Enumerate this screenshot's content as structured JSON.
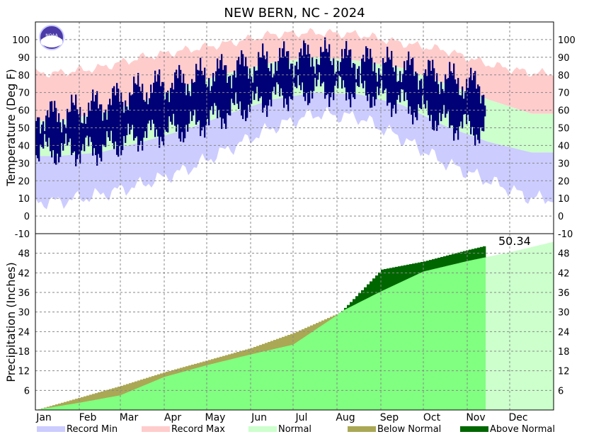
{
  "chart_data": {
    "type": "area",
    "title": "NEW BERN, NC - 2024",
    "months": [
      "Jan",
      "Feb",
      "Mar",
      "Apr",
      "May",
      "Jun",
      "Jul",
      "Aug",
      "Sep",
      "Oct",
      "Nov",
      "Dec"
    ],
    "temperature": {
      "ylabel": "Temperature (Deg F)",
      "ylim": [
        -10,
        110
      ],
      "ticks": [
        -10,
        0,
        10,
        20,
        30,
        40,
        50,
        60,
        70,
        80,
        90,
        100
      ],
      "normal_max_by_month": [
        54,
        58,
        65,
        74,
        81,
        87,
        90,
        88,
        84,
        75,
        66,
        58
      ],
      "normal_min_by_month": [
        34,
        36,
        42,
        49,
        58,
        66,
        70,
        69,
        63,
        51,
        42,
        36
      ],
      "record_max_by_month": [
        81,
        84,
        90,
        94,
        98,
        103,
        104,
        103,
        98,
        94,
        86,
        81
      ],
      "record_min_by_month": [
        8,
        12,
        18,
        26,
        38,
        50,
        58,
        56,
        44,
        30,
        20,
        10
      ],
      "observed_max_by_month": [
        57,
        63,
        72,
        77,
        83,
        88,
        91,
        88,
        84,
        78,
        72
      ],
      "observed_min_by_month": [
        37,
        38,
        46,
        50,
        59,
        67,
        72,
        71,
        64,
        53,
        47
      ],
      "observed_through_day": 318
    },
    "precipitation": {
      "ylabel": "Precipitation (Inches)",
      "ylim": [
        0,
        54
      ],
      "ticks": [
        6,
        12,
        18,
        24,
        30,
        36,
        42,
        48
      ],
      "annotation": "50.34",
      "normal_cumulative_by_month_start": [
        0,
        3.8,
        7.4,
        11.6,
        15.2,
        19.0,
        23.6,
        29.5,
        36.3,
        42.4,
        45.6,
        48.3,
        51.5
      ],
      "observed_cumulative_by_month_start": [
        0,
        2.2,
        4.5,
        10.1,
        13.7,
        17.0,
        20.0,
        29.0,
        43.0,
        45.5,
        49.0
      ],
      "observed_end": 50.34,
      "observed_through_day": 318
    },
    "legend": [
      {
        "label": "Record Min",
        "color": "#ccccff"
      },
      {
        "label": "Record Max",
        "color": "#ffcccc"
      },
      {
        "label": "Normal",
        "color": "#ccffcc"
      },
      {
        "label": "Below Normal",
        "color": "#aaa855"
      },
      {
        "label": "Above Normal",
        "color": "#006600"
      }
    ],
    "colors": {
      "observed_temp": "#000077",
      "normal_precip_to_date": "#80ff80",
      "normal_precip_future": "#ccffcc",
      "grid": "#888888"
    }
  }
}
